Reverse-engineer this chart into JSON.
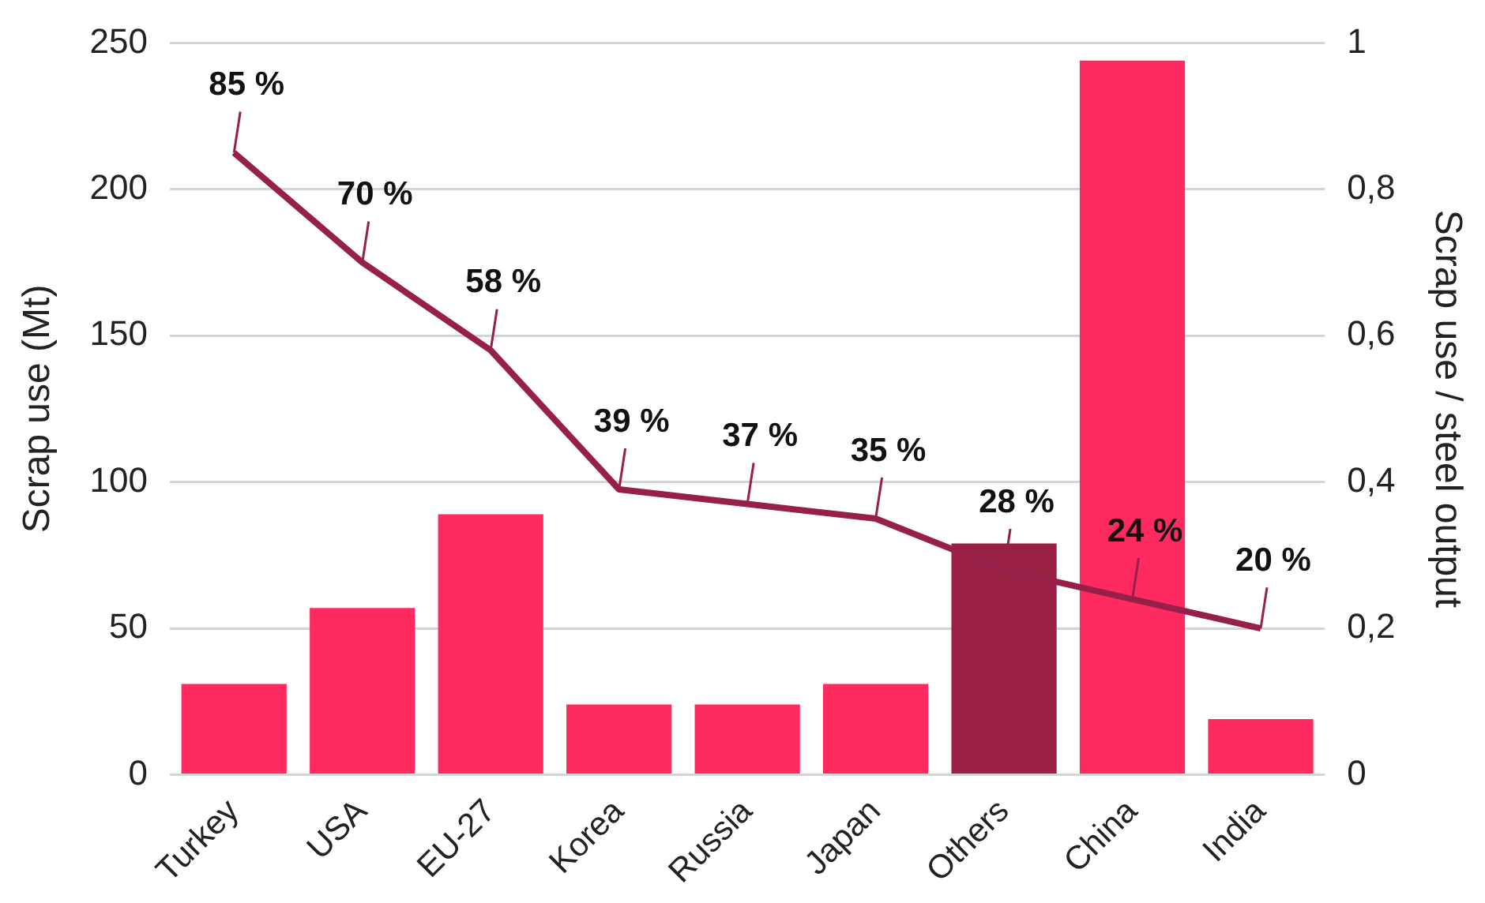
{
  "chart_data": {
    "type": "bar",
    "categories": [
      "Turkey",
      "USA",
      "EU-27",
      "Korea",
      "Russia",
      "Japan",
      "Others",
      "China",
      "India"
    ],
    "ylabel": "Scrap use (Mt)",
    "y2label": "Scrap use / steel output",
    "ylim": [
      0,
      250
    ],
    "yticks": [
      0,
      50,
      100,
      150,
      200,
      250
    ],
    "y2lim": [
      0,
      1
    ],
    "y2ticks": [
      0,
      {
        "value": 0.2,
        "label": "0,2"
      },
      {
        "value": 0.4,
        "label": "0,4"
      },
      {
        "value": 0.6,
        "label": "0,6"
      },
      {
        "value": 0.8,
        "label": "0,8"
      },
      1
    ],
    "grid": "y",
    "legend": false,
    "series": [
      {
        "colors": [
          "#ff2a5f",
          "#ff2a5f",
          "#ff2a5f",
          "#ff2a5f",
          "#ff2a5f",
          "#ff2a5f",
          "#9a2044",
          "#ff2a5f",
          "#ff2a5f"
        ],
        "values": [
          31,
          57,
          89,
          24,
          24,
          31,
          79,
          244,
          19
        ]
      },
      {
        "type": "line",
        "axis": "y2",
        "color": "#962049",
        "marker": "none",
        "values": [
          0.85,
          0.7,
          0.58,
          0.39,
          0.37,
          0.35,
          0.28,
          0.24,
          0.2
        ],
        "value_labels": [
          "85 %",
          "70 %",
          "58 %",
          "39 %",
          "37 %",
          "35 %",
          "28 %",
          "24 %",
          "20 %"
        ]
      }
    ]
  }
}
